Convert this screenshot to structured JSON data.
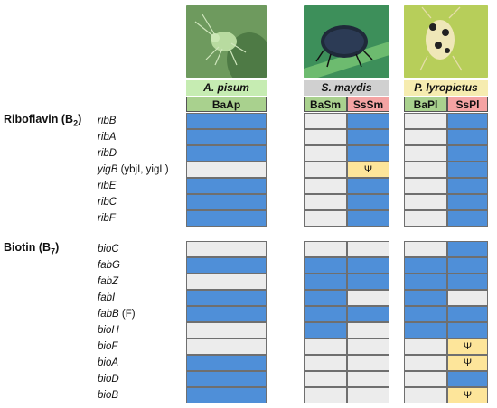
{
  "species": [
    {
      "name": "A. pisum",
      "color": "#c6ecb2"
    },
    {
      "name": "S. maydis",
      "color": "#d0d0d0"
    },
    {
      "name": "P. lyropictus",
      "color": "#f6ecb0"
    }
  ],
  "symbionts": [
    {
      "label": "BaAp",
      "color": "#a9d18e"
    },
    {
      "label": "BaSm",
      "color": "#a9d18e"
    },
    {
      "label": "SsSm",
      "color": "#f4a3a3"
    },
    {
      "label": "BaPl",
      "color": "#a9d18e"
    },
    {
      "label": "SsPl",
      "color": "#f4a3a3"
    }
  ],
  "legend_colors": {
    "present": "#4f8fd8",
    "absent": "#ececec",
    "pseudogene": "#fde59a"
  },
  "pseudogene_symbol": "Ψ",
  "sections": [
    {
      "title": "Riboflavin (B",
      "subscript": "2",
      "title_close": ")",
      "genes": [
        {
          "name": "ribB",
          "extra": "",
          "cells": [
            "b",
            "g",
            "b",
            "g",
            "b"
          ]
        },
        {
          "name": "ribA",
          "extra": "",
          "cells": [
            "b",
            "g",
            "b",
            "g",
            "b"
          ]
        },
        {
          "name": "ribD",
          "extra": "",
          "cells": [
            "b",
            "g",
            "b",
            "g",
            "b"
          ]
        },
        {
          "name": "yigB",
          "extra": "(ybjI, yigL)",
          "cells": [
            "g",
            "g",
            "y",
            "g",
            "b"
          ]
        },
        {
          "name": "ribE",
          "extra": "",
          "cells": [
            "b",
            "g",
            "b",
            "g",
            "b"
          ]
        },
        {
          "name": "ribC",
          "extra": "",
          "cells": [
            "b",
            "g",
            "b",
            "g",
            "b"
          ]
        },
        {
          "name": "ribF",
          "extra": "",
          "cells": [
            "b",
            "g",
            "b",
            "g",
            "b"
          ]
        }
      ]
    },
    {
      "title": "Biotin (B",
      "subscript": "7",
      "title_close": ")",
      "genes": [
        {
          "name": "bioC",
          "extra": "",
          "cells": [
            "g",
            "g",
            "g",
            "g",
            "b"
          ]
        },
        {
          "name": "fabG",
          "extra": "",
          "cells": [
            "b",
            "b",
            "b",
            "b",
            "b"
          ]
        },
        {
          "name": "fabZ",
          "extra": "",
          "cells": [
            "g",
            "b",
            "b",
            "b",
            "b"
          ]
        },
        {
          "name": "fabI",
          "extra": "",
          "cells": [
            "b",
            "b",
            "g",
            "b",
            "g"
          ]
        },
        {
          "name": "fabB",
          "extra": "(F)",
          "cells": [
            "b",
            "b",
            "b",
            "b",
            "b"
          ]
        },
        {
          "name": "bioH",
          "extra": "",
          "cells": [
            "g",
            "b",
            "g",
            "b",
            "b"
          ]
        },
        {
          "name": "bioF",
          "extra": "",
          "cells": [
            "g",
            "g",
            "g",
            "g",
            "y"
          ]
        },
        {
          "name": "bioA",
          "extra": "",
          "cells": [
            "b",
            "g",
            "g",
            "g",
            "y"
          ]
        },
        {
          "name": "bioD",
          "extra": "",
          "cells": [
            "b",
            "g",
            "g",
            "g",
            "b"
          ]
        },
        {
          "name": "bioB",
          "extra": "",
          "cells": [
            "b",
            "g",
            "g",
            "g",
            "y"
          ]
        }
      ]
    }
  ]
}
